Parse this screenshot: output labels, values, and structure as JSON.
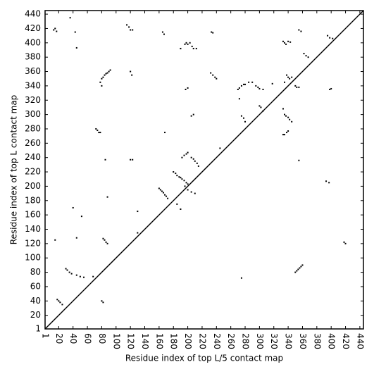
{
  "chart_data": {
    "type": "scatter",
    "x_label": "Residue index of top L/5 contact map",
    "y_label": "Residue index of top L contact map",
    "xlim": [
      1,
      445
    ],
    "ylim": [
      1,
      445
    ],
    "xticks": [
      1,
      20,
      40,
      60,
      80,
      100,
      120,
      140,
      160,
      180,
      200,
      220,
      240,
      260,
      280,
      300,
      320,
      340,
      360,
      380,
      400,
      420,
      440
    ],
    "yticks": [
      1,
      20,
      40,
      60,
      80,
      100,
      120,
      140,
      160,
      180,
      200,
      220,
      240,
      260,
      280,
      300,
      320,
      340,
      360,
      380,
      400,
      420,
      440
    ],
    "series": [
      {
        "color": "#000000",
        "x": [
          13,
          15,
          17,
          36,
          43,
          45,
          115,
          118,
          120,
          123,
          165,
          167,
          190,
          196,
          198,
          200,
          203,
          206,
          208,
          212,
          233,
          235,
          78,
          80,
          82,
          84,
          86,
          88,
          90,
          92,
          80,
          120,
          122,
          197,
          200,
          232,
          235,
          238,
          240,
          270,
          272,
          275,
          278,
          280,
          285,
          290,
          295,
          298,
          300,
          305,
          272,
          275,
          278,
          280,
          300,
          302,
          305,
          318,
          205,
          208,
          192,
          195,
          198,
          200,
          205,
          208,
          210,
          213,
          215,
          245,
          180,
          183,
          185,
          188,
          190,
          192,
          195,
          198,
          200,
          160,
          162,
          164,
          166,
          168,
          170,
          172,
          190,
          185,
          168,
          120,
          123,
          85,
          72,
          74,
          76,
          78,
          88,
          130,
          40,
          52,
          196,
          200,
          205,
          210,
          130,
          82,
          84,
          86,
          88,
          15,
          45,
          30,
          32,
          35,
          38,
          45,
          50,
          55,
          68,
          18,
          20,
          22,
          25,
          80,
          82
        ],
        "values": [
          418,
          420,
          416,
          435,
          415,
          393,
          425,
          422,
          418,
          418,
          415,
          412,
          392,
          398,
          400,
          398,
          400,
          395,
          392,
          392,
          415,
          414,
          345,
          350,
          352,
          355,
          357,
          358,
          360,
          362,
          340,
          360,
          355,
          335,
          337,
          358,
          355,
          352,
          350,
          335,
          337,
          340,
          342,
          342,
          345,
          345,
          340,
          338,
          336,
          335,
          322,
          298,
          295,
          290,
          312,
          310,
          305,
          343,
          298,
          300,
          240,
          243,
          245,
          247,
          240,
          238,
          235,
          232,
          228,
          253,
          220,
          218,
          215,
          213,
          212,
          210,
          208,
          205,
          203,
          197,
          195,
          193,
          191,
          188,
          186,
          183,
          168,
          175,
          275,
          237,
          237,
          237,
          280,
          278,
          275,
          275,
          185,
          165,
          170,
          158,
          200,
          195,
          192,
          190,
          135,
          127,
          125,
          122,
          120,
          125,
          128,
          85,
          83,
          80,
          78,
          76,
          74,
          73,
          74,
          42,
          40,
          38,
          35,
          40,
          38
        ]
      },
      {
        "color": "#000000",
        "x": [
          333,
          335,
          337,
          340,
          343,
          355,
          358,
          362,
          365,
          368,
          395,
          398,
          402,
          398,
          400,
          338,
          340,
          342,
          345,
          350,
          352,
          355,
          333,
          335,
          337,
          340,
          342,
          345,
          333,
          335,
          338,
          340,
          355,
          393,
          397,
          418,
          420,
          350,
          352,
          354,
          356,
          358,
          360,
          275,
          335
        ],
        "values": [
          402,
          400,
          398,
          402,
          401,
          418,
          416,
          385,
          382,
          380,
          410,
          407,
          406,
          335,
          336,
          355,
          352,
          350,
          352,
          340,
          338,
          338,
          308,
          300,
          298,
          296,
          293,
          290,
          272,
          272,
          275,
          277,
          236,
          207,
          205,
          122,
          120,
          80,
          82,
          84,
          86,
          88,
          90,
          72,
          345
        ]
      }
    ]
  }
}
